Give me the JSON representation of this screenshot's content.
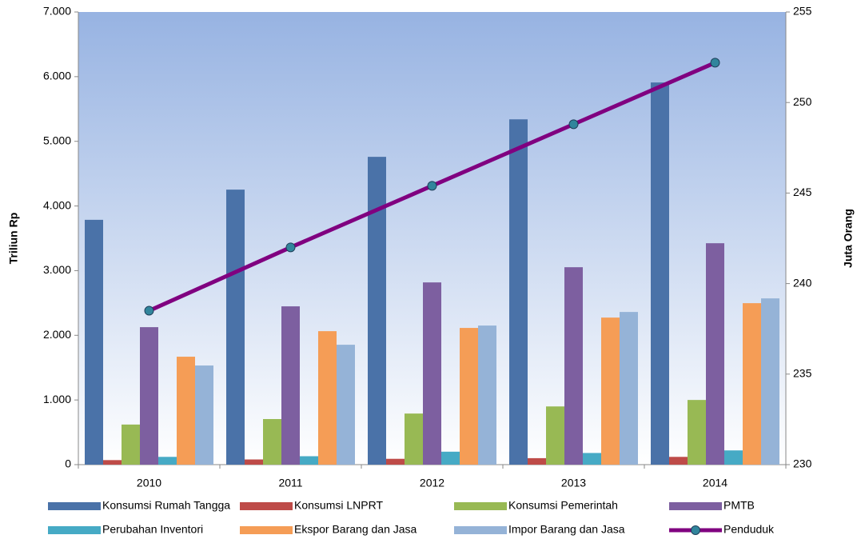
{
  "chart_data": {
    "type": "bar",
    "categories": [
      "2010",
      "2011",
      "2012",
      "2013",
      "2014"
    ],
    "ylabel": "Triliun Rp",
    "y2label": "Juta Orang",
    "ylim": [
      0,
      7000
    ],
    "yticks": [
      0,
      {
        "value": 1000,
        "label": "1.000"
      },
      {
        "value": 2000,
        "label": "2.000"
      },
      {
        "value": 3000,
        "label": "3.000"
      },
      {
        "value": 4000,
        "label": "4.000"
      },
      {
        "value": 5000,
        "label": "5.000"
      },
      {
        "value": 6000,
        "label": "6.000"
      },
      {
        "value": 7000,
        "label": "7.000"
      }
    ],
    "y2lim": [
      230,
      255
    ],
    "y2ticks": [
      230,
      235,
      240,
      245,
      250,
      255
    ],
    "series": [
      {
        "name": "Konsumsi Rumah Tangga",
        "color": "#4a72a8",
        "values": [
          3786,
          4253,
          4760,
          5340,
          5910
        ]
      },
      {
        "name": "Konsumsi LNPRT",
        "color": "#be4b48",
        "values": [
          70,
          80,
          90,
          100,
          120
        ]
      },
      {
        "name": "Konsumsi Pemerintah",
        "color": "#98b954",
        "values": [
          620,
          705,
          790,
          900,
          1000
        ]
      },
      {
        "name": "PMTB",
        "color": "#7d5fa0",
        "values": [
          2126,
          2448,
          2818,
          3053,
          3424
        ]
      },
      {
        "name": "Perubahan Inventori",
        "color": "#46aac5",
        "values": [
          120,
          130,
          200,
          180,
          220
        ]
      },
      {
        "name": "Ekspor Barang dan Jasa",
        "color": "#f59d56",
        "values": [
          1669,
          2064,
          2114,
          2274,
          2497
        ]
      },
      {
        "name": "Impor Barang dan Jasa",
        "color": "#95b3d7",
        "values": [
          1533,
          1854,
          2151,
          2361,
          2571
        ]
      },
      {
        "name": "Penduduk",
        "type": "line",
        "axis": "y2",
        "color": "#800080",
        "marker_color": "#31859c",
        "values": [
          238.5,
          242.0,
          245.4,
          248.8,
          252.2
        ]
      }
    ]
  }
}
